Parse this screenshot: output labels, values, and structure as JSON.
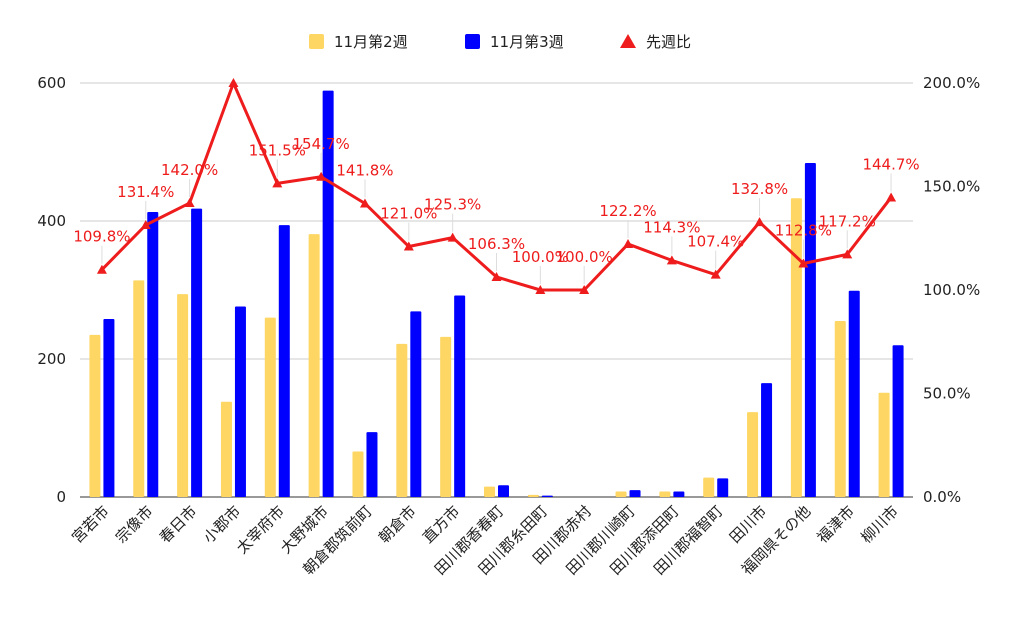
{
  "chart_data": {
    "type": "bar",
    "categories": [
      "宮若市",
      "宗像市",
      "春日市",
      "小郡市",
      "太宰府市",
      "大野城市",
      "朝倉郡筑前町",
      "朝倉市",
      "直方市",
      "田川郡香春町",
      "田川郡糸田町",
      "田川郡赤村",
      "田川郡川崎町",
      "田川郡添田町",
      "田川郡福智町",
      "田川市",
      "福岡県その他",
      "福津市",
      "柳川市"
    ],
    "series": [
      {
        "name": "11月第2週",
        "type": "bar",
        "axis": "left",
        "color": "#fdd663",
        "values": [
          235,
          314,
          294,
          138,
          260,
          381,
          66,
          222,
          232,
          15,
          3,
          0,
          8,
          8,
          28,
          123,
          433,
          255,
          151
        ]
      },
      {
        "name": "11月第3週",
        "type": "bar",
        "axis": "left",
        "color": "#0000ff",
        "values": [
          258,
          413,
          418,
          276,
          394,
          589,
          94,
          269,
          292,
          17,
          2,
          0,
          10,
          8,
          27,
          165,
          484,
          299,
          220
        ]
      },
      {
        "name": "先週比",
        "type": "line",
        "axis": "right",
        "color": "#ee1c1c",
        "values": [
          109.8,
          131.4,
          142.0,
          200.0,
          151.5,
          154.7,
          141.8,
          121.0,
          125.3,
          106.3,
          100.0,
          100.0,
          122.2,
          114.3,
          107.4,
          132.8,
          112.8,
          117.2,
          144.7
        ],
        "labels": [
          "109.8%",
          "131.4%",
          "142.0%",
          "",
          "151.5%",
          "154.7%",
          "141.8%",
          "121.0%",
          "125.3%",
          "106.3%",
          "100.0%",
          "100.0%",
          "122.2%",
          "114.3%",
          "107.4%",
          "132.8%",
          "112.8%",
          "117.2%",
          "144.7%"
        ]
      }
    ],
    "y_left": {
      "ticks": [
        0,
        200,
        400,
        600
      ],
      "tick_labels": [
        "0",
        "200",
        "400",
        "600"
      ],
      "ylim": [
        0,
        600
      ]
    },
    "y_right": {
      "ticks": [
        0,
        50,
        100,
        150,
        200
      ],
      "tick_labels": [
        "0.0%",
        "50.0%",
        "100.0%",
        "150.0%",
        "200.0%"
      ],
      "ylim": [
        0,
        200
      ]
    },
    "grid": true,
    "legend_position": "top"
  }
}
